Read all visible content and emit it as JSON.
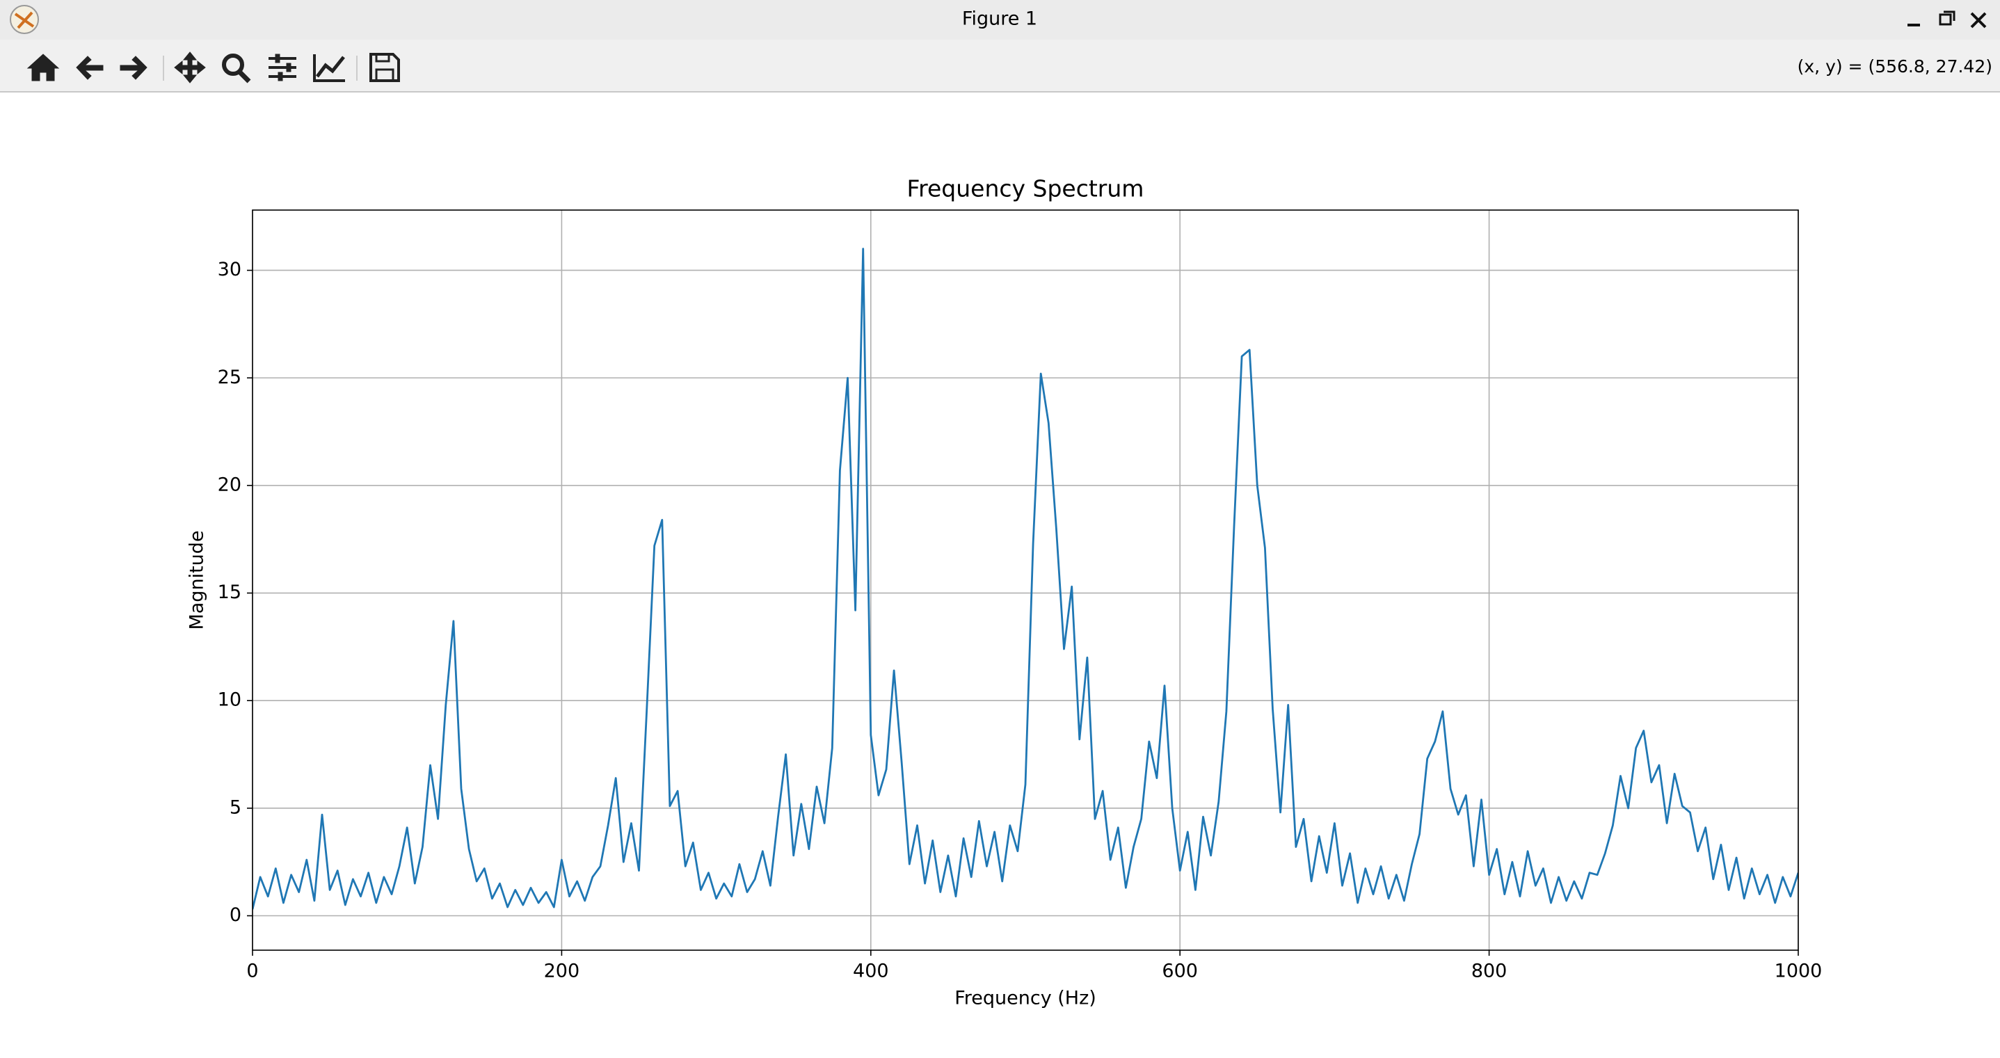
{
  "window": {
    "title": "Figure 1"
  },
  "toolbar": {
    "coordinates": "(x, y) = (556.8, 27.42)"
  },
  "chart_data": {
    "type": "line",
    "title": "Frequency Spectrum",
    "xlabel": "Frequency (Hz)",
    "ylabel": "Magnitude",
    "color": "#1f77b4",
    "grid": true,
    "xlim": [
      0,
      1000
    ],
    "ylim": [
      -1.6,
      32.8
    ],
    "xticks": [
      0,
      200,
      400,
      600,
      800,
      1000
    ],
    "yticks": [
      0,
      5,
      10,
      15,
      20,
      25,
      30
    ],
    "x": [
      0,
      5,
      10,
      15,
      20,
      25,
      30,
      35,
      40,
      45,
      50,
      55,
      60,
      65,
      70,
      75,
      80,
      85,
      90,
      95,
      100,
      105,
      110,
      115,
      120,
      125,
      130,
      135,
      140,
      145,
      150,
      155,
      160,
      165,
      170,
      175,
      180,
      185,
      190,
      195,
      200,
      205,
      210,
      215,
      220,
      225,
      230,
      235,
      240,
      245,
      250,
      255,
      260,
      265,
      270,
      275,
      280,
      285,
      290,
      295,
      300,
      305,
      310,
      315,
      320,
      325,
      330,
      335,
      340,
      345,
      350,
      355,
      360,
      365,
      370,
      375,
      380,
      385,
      390,
      395,
      400,
      405,
      410,
      415,
      420,
      425,
      430,
      435,
      440,
      445,
      450,
      455,
      460,
      465,
      470,
      475,
      480,
      485,
      490,
      495,
      500,
      505,
      510,
      515,
      520,
      525,
      530,
      535,
      540,
      545,
      550,
      555,
      560,
      565,
      570,
      575,
      580,
      585,
      590,
      595,
      600,
      605,
      610,
      615,
      620,
      625,
      630,
      635,
      640,
      645,
      650,
      655,
      660,
      665,
      670,
      675,
      680,
      685,
      690,
      695,
      700,
      705,
      710,
      715,
      720,
      725,
      730,
      735,
      740,
      745,
      750,
      755,
      760,
      765,
      770,
      775,
      780,
      785,
      790,
      795,
      800,
      805,
      810,
      815,
      820,
      825,
      830,
      835,
      840,
      845,
      850,
      855,
      860,
      865,
      870,
      875,
      880,
      885,
      890,
      895,
      900,
      905,
      910,
      915,
      920,
      925,
      930,
      935,
      940,
      945,
      950,
      955,
      960,
      965,
      970,
      975,
      980,
      985,
      990,
      995,
      1000
    ],
    "values": [
      0.3,
      1.8,
      0.9,
      2.2,
      0.6,
      1.9,
      1.1,
      2.6,
      0.7,
      4.7,
      1.2,
      2.1,
      0.5,
      1.7,
      0.9,
      2.0,
      0.6,
      1.8,
      1.0,
      2.3,
      4.1,
      1.5,
      3.2,
      7.0,
      4.5,
      9.8,
      13.7,
      5.9,
      3.1,
      1.6,
      2.2,
      0.8,
      1.5,
      0.4,
      1.2,
      0.5,
      1.3,
      0.6,
      1.1,
      0.4,
      2.6,
      0.9,
      1.6,
      0.7,
      1.8,
      2.3,
      4.2,
      6.4,
      2.5,
      4.3,
      2.1,
      9.5,
      17.2,
      18.4,
      5.1,
      5.8,
      2.3,
      3.4,
      1.2,
      2.0,
      0.8,
      1.5,
      0.9,
      2.4,
      1.1,
      1.7,
      3.0,
      1.4,
      4.6,
      7.5,
      2.8,
      5.2,
      3.1,
      6.0,
      4.3,
      7.8,
      20.7,
      25.0,
      14.2,
      31.0,
      8.4,
      5.6,
      6.8,
      11.4,
      7.1,
      2.4,
      4.2,
      1.5,
      3.5,
      1.1,
      2.8,
      0.9,
      3.6,
      1.8,
      4.4,
      2.3,
      3.9,
      1.6,
      4.2,
      3.0,
      6.1,
      17.3,
      25.2,
      22.9,
      18.0,
      12.4,
      15.3,
      8.2,
      12.0,
      4.5,
      5.8,
      2.6,
      4.1,
      1.3,
      3.2,
      4.5,
      8.1,
      6.4,
      10.7,
      5.0,
      2.1,
      3.9,
      1.2,
      4.6,
      2.8,
      5.3,
      9.5,
      18.1,
      26.0,
      26.3,
      20.0,
      17.1,
      9.6,
      4.8,
      9.8,
      3.2,
      4.5,
      1.6,
      3.7,
      2.0,
      4.3,
      1.4,
      2.9,
      0.6,
      2.2,
      1.0,
      2.3,
      0.8,
      1.9,
      0.7,
      2.4,
      3.8,
      7.3,
      8.1,
      9.5,
      5.9,
      4.7,
      5.6,
      2.3,
      5.4,
      1.9,
      3.1,
      1.0,
      2.5,
      0.9,
      3.0,
      1.4,
      2.2,
      0.6,
      1.8,
      0.7,
      1.6,
      0.8,
      2.0,
      1.9,
      2.9,
      4.2,
      6.5,
      5.0,
      7.8,
      8.6,
      6.2,
      7.0,
      4.3,
      6.6,
      5.1,
      4.8,
      3.0,
      4.1,
      1.7,
      3.3,
      1.2,
      2.7,
      0.8,
      2.2,
      1.0,
      1.9,
      0.6,
      1.8,
      0.9,
      2.0
    ]
  }
}
